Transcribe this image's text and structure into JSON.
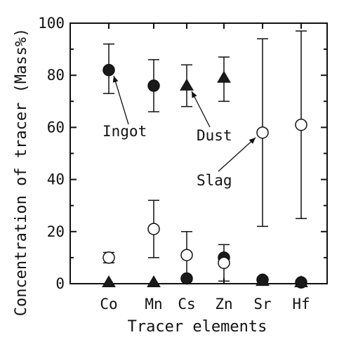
{
  "chart_data": {
    "type": "scatter",
    "title": "",
    "xlabel": "Tracer elements",
    "ylabel": "Concentration of tracer (Mass%)",
    "categories": [
      "Co",
      "Mn",
      "Cs",
      "Zn",
      "Sr",
      "Hf"
    ],
    "ylim": [
      0,
      100
    ],
    "yticks": [
      "0",
      "20",
      "40",
      "60",
      "80",
      "100"
    ],
    "grid": false,
    "legend": "none",
    "series": [
      {
        "name": "Ingot",
        "marker": "filled-circle",
        "values": [
          82,
          76,
          2,
          10,
          1.5,
          0.5
        ],
        "err_low": [
          73,
          66,
          null,
          null,
          null,
          null
        ],
        "err_high": [
          92,
          86,
          null,
          null,
          null,
          null
        ]
      },
      {
        "name": "Dust",
        "marker": "filled-triangle",
        "values": [
          0.5,
          0.5,
          76,
          79,
          1,
          0.5
        ],
        "err_low": [
          null,
          null,
          68,
          70,
          null,
          null
        ],
        "err_high": [
          null,
          null,
          84,
          87,
          null,
          null
        ]
      },
      {
        "name": "Slag",
        "marker": "open-circle",
        "values": [
          10,
          21,
          11,
          8,
          58,
          61
        ],
        "err_low": [
          8,
          10,
          1,
          1,
          22,
          25
        ],
        "err_high": [
          12,
          32,
          20,
          15,
          94,
          97
        ]
      }
    ],
    "annotations": [
      {
        "text": "Ingot",
        "series": "Ingot",
        "category": "Co"
      },
      {
        "text": "Dust",
        "series": "Dust",
        "category": "Cs"
      },
      {
        "text": "Slag",
        "series": "Slag",
        "category": "Sr"
      }
    ]
  }
}
